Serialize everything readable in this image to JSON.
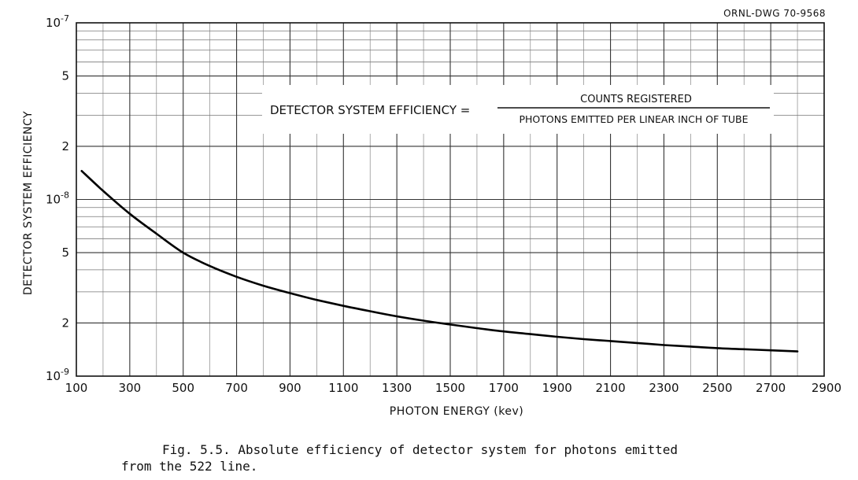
{
  "drawing_number": "ORNL-DWG 70-9568",
  "equation": {
    "lhs": "DETECTOR SYSTEM EFFICIENCY =",
    "numerator": "COUNTS REGISTERED",
    "denominator": "PHOTONS EMITTED PER LINEAR INCH OF TUBE"
  },
  "caption": {
    "line1": "Fig. 5.5.  Absolute efficiency of detector system for photons emitted",
    "line2": "from the 522 line."
  },
  "chart_data": {
    "type": "line",
    "title": "",
    "xlabel": "PHOTON ENERGY (kev)",
    "ylabel": "DETECTOR SYSTEM EFFICIENCY",
    "xlim": [
      100,
      2900
    ],
    "ylim": [
      1e-09,
      1e-07
    ],
    "yscale": "log",
    "grid": true,
    "x_ticks": [
      100,
      300,
      500,
      700,
      900,
      1100,
      1300,
      1500,
      1700,
      1900,
      2100,
      2300,
      2500,
      2700,
      2900
    ],
    "y_ticks": [
      {
        "value": 1e-09,
        "mantissa": "10",
        "exponent": "-9"
      },
      {
        "value": 2e-09,
        "mantissa": "2",
        "exponent": ""
      },
      {
        "value": 5e-09,
        "mantissa": "5",
        "exponent": ""
      },
      {
        "value": 1e-08,
        "mantissa": "10",
        "exponent": "-8"
      },
      {
        "value": 2e-08,
        "mantissa": "2",
        "exponent": ""
      },
      {
        "value": 5e-08,
        "mantissa": "5",
        "exponent": ""
      },
      {
        "value": 1e-07,
        "mantissa": "10",
        "exponent": "-7"
      }
    ],
    "series": [
      {
        "x": [
          120,
          200,
          300,
          400,
          500,
          600,
          700,
          800,
          900,
          1000,
          1100,
          1200,
          1300,
          1400,
          1500,
          1600,
          1700,
          1800,
          1900,
          2000,
          2100,
          2200,
          2300,
          2400,
          2500,
          2600,
          2700,
          2800
        ],
        "y": [
          1.45e-08,
          1.12e-08,
          8.3e-09,
          6.4e-09,
          5e-09,
          4.2e-09,
          3.65e-09,
          3.25e-09,
          2.95e-09,
          2.7e-09,
          2.5e-09,
          2.33e-09,
          2.18e-09,
          2.06e-09,
          1.96e-09,
          1.87e-09,
          1.79e-09,
          1.73e-09,
          1.67e-09,
          1.62e-09,
          1.58e-09,
          1.54e-09,
          1.5e-09,
          1.47e-09,
          1.44e-09,
          1.42e-09,
          1.4e-09,
          1.38e-09
        ]
      }
    ]
  }
}
